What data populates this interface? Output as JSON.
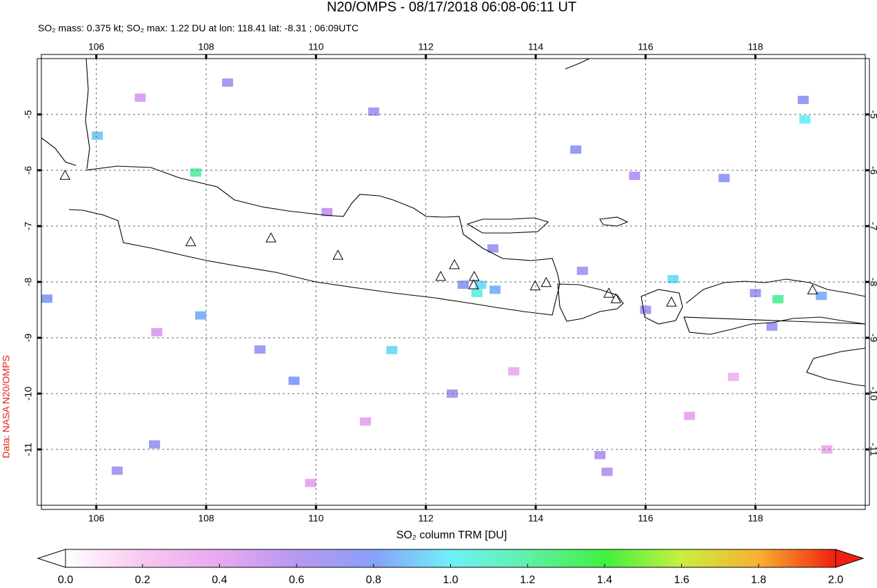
{
  "title": "N20/OMPS - 08/17/2018 06:08-06:11 UT",
  "subtitle": "SO₂ mass: 0.375 kt; SO₂ max: 1.22 DU at lon: 118.41 lat: -8.31 ; 06:09UTC",
  "credit": "Data: NASA N20/OMPS",
  "map": {
    "lonlim": [
      105,
      120
    ],
    "latlim": [
      -4,
      -12
    ],
    "lonticks": [
      106,
      108,
      110,
      112,
      114,
      116,
      118
    ],
    "latticks": [
      -5,
      -6,
      -7,
      -8,
      -9,
      -10,
      -11
    ],
    "volcanoes": [
      {
        "lon": 105.43,
        "lat": -6.09
      },
      {
        "lon": 107.72,
        "lat": -7.28
      },
      {
        "lon": 109.18,
        "lat": -7.21
      },
      {
        "lon": 110.4,
        "lat": -7.52
      },
      {
        "lon": 112.27,
        "lat": -7.9
      },
      {
        "lon": 112.52,
        "lat": -7.69
      },
      {
        "lon": 112.88,
        "lat": -7.9
      },
      {
        "lon": 112.87,
        "lat": -8.05
      },
      {
        "lon": 113.99,
        "lat": -8.07
      },
      {
        "lon": 114.19,
        "lat": -8.01
      },
      {
        "lon": 115.33,
        "lat": -8.2
      },
      {
        "lon": 115.46,
        "lat": -8.3
      },
      {
        "lon": 116.47,
        "lat": -8.36
      },
      {
        "lon": 119.04,
        "lat": -8.14
      }
    ],
    "pixels": [
      {
        "lon": 118.41,
        "lat": -8.31,
        "value": 1.22
      },
      {
        "lon": 112.93,
        "lat": -8.2,
        "value": 1.05
      },
      {
        "lon": 113.0,
        "lat": -8.05,
        "value": 0.95
      },
      {
        "lon": 118.9,
        "lat": -5.09,
        "value": 1.0
      },
      {
        "lon": 116.5,
        "lat": -7.95,
        "value": 0.95
      },
      {
        "lon": 107.81,
        "lat": -6.04,
        "value": 1.2
      },
      {
        "lon": 105.1,
        "lat": -8.3,
        "value": 0.8
      },
      {
        "lon": 106.02,
        "lat": -5.38,
        "value": 0.9
      },
      {
        "lon": 111.38,
        "lat": -9.22,
        "value": 0.95
      },
      {
        "lon": 107.9,
        "lat": -8.6,
        "value": 0.85
      },
      {
        "lon": 108.98,
        "lat": -9.21,
        "value": 0.7
      },
      {
        "lon": 109.6,
        "lat": -9.77,
        "value": 0.8
      },
      {
        "lon": 114.73,
        "lat": -5.63,
        "value": 0.75
      },
      {
        "lon": 117.43,
        "lat": -6.14,
        "value": 0.75
      },
      {
        "lon": 118.87,
        "lat": -4.74,
        "value": 0.75
      },
      {
        "lon": 108.39,
        "lat": -4.43,
        "value": 0.65
      },
      {
        "lon": 113.22,
        "lat": -7.4,
        "value": 0.7
      },
      {
        "lon": 114.85,
        "lat": -7.8,
        "value": 0.65
      },
      {
        "lon": 112.68,
        "lat": -8.05,
        "value": 0.75
      },
      {
        "lon": 113.26,
        "lat": -8.14,
        "value": 0.85
      },
      {
        "lon": 118.0,
        "lat": -8.2,
        "value": 0.7
      },
      {
        "lon": 118.3,
        "lat": -8.8,
        "value": 0.7
      },
      {
        "lon": 119.2,
        "lat": -8.25,
        "value": 0.85
      },
      {
        "lon": 116.0,
        "lat": -8.5,
        "value": 0.65
      },
      {
        "lon": 106.38,
        "lat": -11.38,
        "value": 0.65
      },
      {
        "lon": 107.06,
        "lat": -10.91,
        "value": 0.7
      },
      {
        "lon": 115.17,
        "lat": -11.1,
        "value": 0.6
      },
      {
        "lon": 115.3,
        "lat": -11.4,
        "value": 0.6
      },
      {
        "lon": 112.48,
        "lat": -10.0,
        "value": 0.65
      },
      {
        "lon": 111.05,
        "lat": -4.95,
        "value": 0.65
      },
      {
        "lon": 115.8,
        "lat": -6.1,
        "value": 0.6
      },
      {
        "lon": 110.2,
        "lat": -6.75,
        "value": 0.55
      },
      {
        "lon": 107.1,
        "lat": -8.9,
        "value": 0.45
      },
      {
        "lon": 110.9,
        "lat": -10.5,
        "value": 0.4
      },
      {
        "lon": 113.6,
        "lat": -9.6,
        "value": 0.35
      },
      {
        "lon": 116.8,
        "lat": -10.4,
        "value": 0.4
      },
      {
        "lon": 119.3,
        "lat": -11.0,
        "value": 0.35
      },
      {
        "lon": 106.8,
        "lat": -4.7,
        "value": 0.45
      },
      {
        "lon": 109.9,
        "lat": -11.6,
        "value": 0.4
      },
      {
        "lon": 117.6,
        "lat": -9.7,
        "value": 0.3
      }
    ]
  },
  "colorbar": {
    "label": "SO₂ column TRM [DU]",
    "lim": [
      0,
      2
    ],
    "colors": [
      "#ffffff",
      "#f8c8f0",
      "#e8a8f0",
      "#b898f0",
      "#88a0f8",
      "#70f0f8",
      "#60f0a8",
      "#40f040",
      "#c8f040",
      "#f8b030",
      "#f02010"
    ],
    "ticks": [
      {
        "value": 0,
        "label": "0.0"
      },
      {
        "value": 0.2,
        "label": "0.2"
      },
      {
        "value": 0.4,
        "label": "0.4"
      },
      {
        "value": 0.6,
        "label": "0.6"
      },
      {
        "value": 0.8,
        "label": "0.8"
      },
      {
        "value": 1,
        "label": "1.0"
      },
      {
        "value": 1.2,
        "label": "1.2"
      },
      {
        "value": 1.4,
        "label": "1.4"
      },
      {
        "value": 1.6,
        "label": "1.6"
      },
      {
        "value": 1.8,
        "label": "1.8"
      },
      {
        "value": 2,
        "label": "2.0"
      }
    ]
  }
}
